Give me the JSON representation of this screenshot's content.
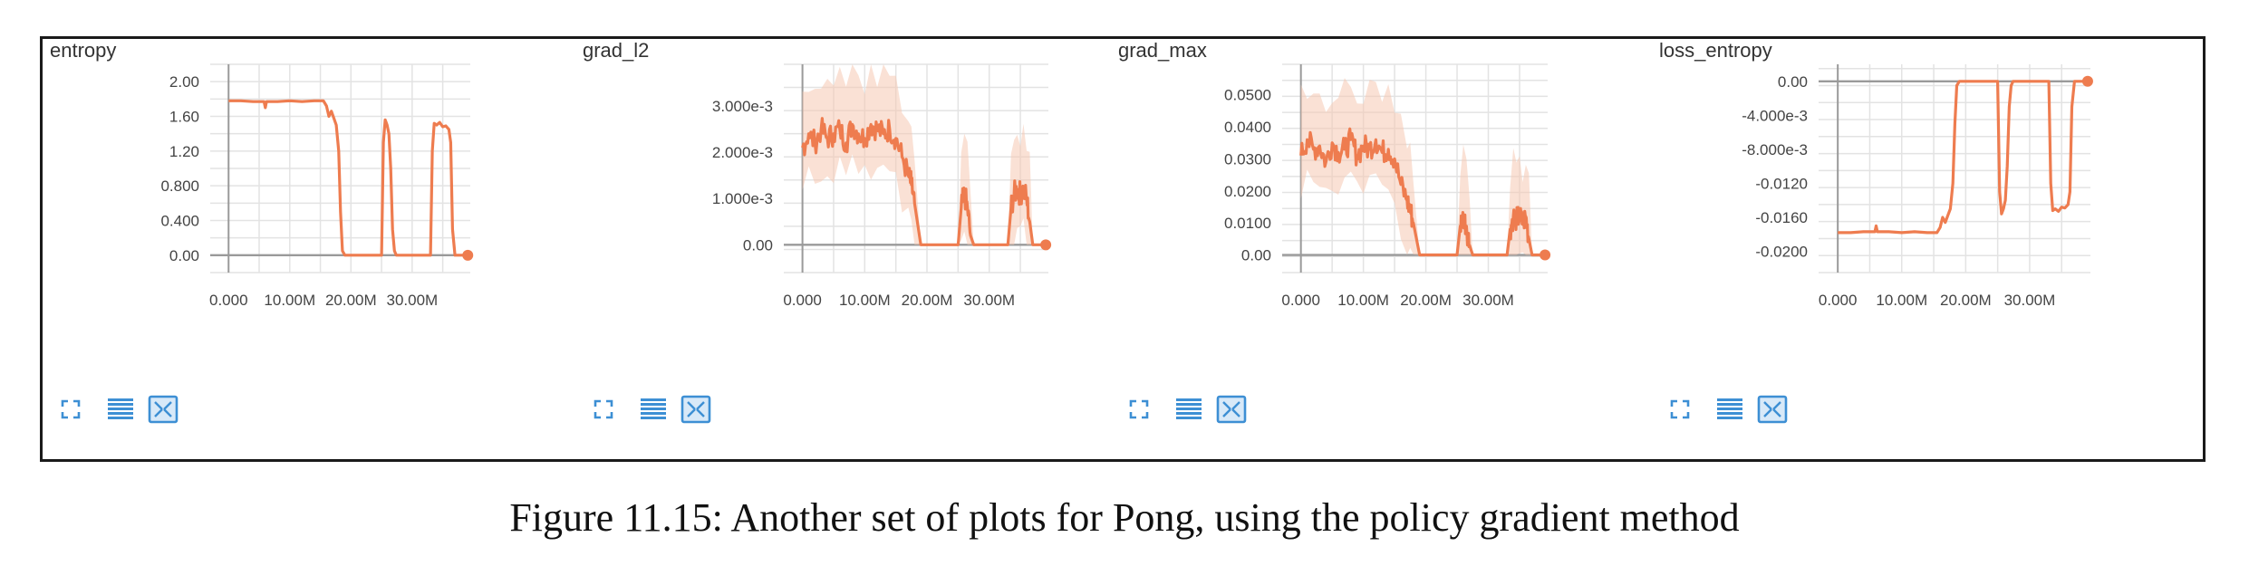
{
  "caption": "Figure 11.15: Another set of plots for Pong, using the policy gradient method",
  "colors": {
    "line": "#ee7c4f",
    "band": "#f6c8b3",
    "grid": "#e3e3e3",
    "axis": "#9a9a9a",
    "text": "#444444",
    "icon": "#3d8fd4"
  },
  "toolbar_icons": [
    "expand-icon",
    "lines-icon",
    "fit-domain-icon"
  ],
  "chart_data": [
    {
      "type": "line",
      "title": "entropy",
      "x_ticks": [
        "0.000",
        "10.00M",
        "20.00M",
        "30.00M"
      ],
      "x_tick_values": [
        0,
        10,
        20,
        30
      ],
      "x_unit": "M steps",
      "xlim": [
        -3,
        39.5
      ],
      "y_ticks": [
        "2.00",
        "1.60",
        "1.20",
        "0.800",
        "0.400",
        "0.00"
      ],
      "y_tick_values": [
        2.0,
        1.6,
        1.2,
        0.8,
        0.4,
        0.0
      ],
      "ylim": [
        -0.2,
        2.2
      ],
      "band": false,
      "series": [
        {
          "x": [
            0,
            2,
            4,
            5.8,
            6,
            6.2,
            8,
            10,
            12,
            14,
            15.5,
            16,
            16.4,
            16.8,
            17.2,
            17.6,
            18,
            18.3,
            18.6,
            19,
            22,
            25,
            25.3,
            25.6,
            25.9,
            26.2,
            26.5,
            26.8,
            27.1,
            27.4,
            28,
            31,
            33,
            33.3,
            33.6,
            34,
            34.5,
            35,
            35.5,
            36,
            36.3,
            36.6,
            37,
            38.5
          ],
          "y": [
            1.78,
            1.78,
            1.77,
            1.77,
            1.7,
            1.77,
            1.77,
            1.78,
            1.77,
            1.78,
            1.78,
            1.72,
            1.6,
            1.66,
            1.58,
            1.5,
            1.2,
            0.5,
            0.05,
            0.0,
            0.0,
            0.0,
            1.3,
            1.56,
            1.5,
            1.4,
            1.0,
            0.3,
            0.05,
            0.0,
            0.0,
            0.0,
            0.0,
            1.2,
            1.52,
            1.5,
            1.53,
            1.48,
            1.49,
            1.45,
            1.3,
            0.3,
            0.0,
            0.0
          ]
        }
      ],
      "end_marker": true
    },
    {
      "type": "line",
      "title": "grad_l2",
      "x_ticks": [
        "0.000",
        "10.00M",
        "20.00M",
        "30.00M"
      ],
      "x_tick_values": [
        0,
        10,
        20,
        30
      ],
      "x_unit": "M steps",
      "xlim": [
        -3,
        39.5
      ],
      "y_ticks": [
        "3.000e-3",
        "2.000e-3",
        "1.000e-3",
        "0.00"
      ],
      "y_tick_values": [
        0.003,
        0.002,
        0.001,
        0.0
      ],
      "ylim": [
        -0.0006,
        0.0039
      ],
      "band": true,
      "series": [
        {
          "x": [
            0,
            1,
            2,
            3,
            4,
            5,
            6,
            7,
            8,
            9,
            10,
            11,
            12,
            13,
            14,
            15,
            16,
            17,
            17.5,
            18,
            19,
            22,
            25,
            25.5,
            26,
            26.5,
            27,
            27.5,
            28,
            31,
            33,
            33.5,
            34,
            34.5,
            35,
            35.5,
            36,
            36.5,
            37,
            38.5
          ],
          "y": [
            0.0021,
            0.0024,
            0.0022,
            0.0025,
            0.0023,
            0.0024,
            0.0025,
            0.0022,
            0.0026,
            0.0024,
            0.0023,
            0.0026,
            0.0025,
            0.0024,
            0.0025,
            0.0023,
            0.0019,
            0.0015,
            0.0013,
            0.0009,
            0.0,
            0.0,
            0.0,
            0.0008,
            0.0011,
            0.0008,
            0.0002,
            0.0,
            0.0,
            0.0,
            0.0,
            0.0008,
            0.0011,
            0.0012,
            0.0011,
            0.0012,
            0.001,
            0.0005,
            0.0,
            0.0
          ]
        }
      ],
      "end_marker": true
    },
    {
      "type": "line",
      "title": "grad_max",
      "x_ticks": [
        "0.000",
        "10.00M",
        "20.00M",
        "30.00M"
      ],
      "x_tick_values": [
        0,
        10,
        20,
        30
      ],
      "x_unit": "M steps",
      "xlim": [
        -3,
        39.5
      ],
      "y_ticks": [
        "0.0500",
        "0.0400",
        "0.0300",
        "0.0200",
        "0.0100",
        "0.00"
      ],
      "y_tick_values": [
        0.05,
        0.04,
        0.03,
        0.02,
        0.01,
        0.0
      ],
      "ylim": [
        -0.0055,
        0.0595
      ],
      "band": true,
      "series": [
        {
          "x": [
            0,
            1,
            2,
            3,
            4,
            5,
            6,
            7,
            8,
            9,
            10,
            11,
            12,
            13,
            14,
            15,
            16,
            17,
            17.5,
            18,
            19,
            22,
            25,
            25.5,
            26,
            26.5,
            27,
            27.5,
            28,
            31,
            33,
            33.5,
            34,
            34.5,
            35,
            35.5,
            36,
            36.5,
            37,
            38.5
          ],
          "y": [
            0.031,
            0.036,
            0.033,
            0.034,
            0.029,
            0.035,
            0.032,
            0.033,
            0.036,
            0.031,
            0.034,
            0.033,
            0.036,
            0.032,
            0.033,
            0.03,
            0.022,
            0.017,
            0.014,
            0.01,
            0.0,
            0.0,
            0.0,
            0.009,
            0.012,
            0.009,
            0.003,
            0.0,
            0.0,
            0.0,
            0.0,
            0.008,
            0.012,
            0.011,
            0.012,
            0.01,
            0.012,
            0.005,
            0.0,
            0.0
          ]
        }
      ],
      "end_marker": true
    },
    {
      "type": "line",
      "title": "loss_entropy",
      "x_ticks": [
        "0.000",
        "10.00M",
        "20.00M",
        "30.00M"
      ],
      "x_tick_values": [
        0,
        10,
        20,
        30
      ],
      "x_unit": "M steps",
      "xlim": [
        -3,
        39.5
      ],
      "y_ticks": [
        "0.00",
        "-4.000e-3",
        "-8.000e-3",
        "-0.0120",
        "-0.0160",
        "-0.0200"
      ],
      "y_tick_values": [
        0.0,
        -0.004,
        -0.008,
        -0.012,
        -0.016,
        -0.02
      ],
      "ylim": [
        -0.0225,
        0.002
      ],
      "band": false,
      "series": [
        {
          "x": [
            0,
            2,
            4,
            5.8,
            6,
            6.2,
            8,
            10,
            12,
            14,
            15.5,
            16,
            16.4,
            16.8,
            17.2,
            17.6,
            18,
            18.3,
            18.6,
            19,
            22,
            25,
            25.3,
            25.6,
            25.9,
            26.2,
            26.5,
            26.8,
            27.1,
            27.4,
            28,
            31,
            33,
            33.3,
            33.6,
            34,
            34.5,
            35,
            35.5,
            36,
            36.3,
            36.6,
            37,
            38.5
          ],
          "y": [
            -0.0178,
            -0.0178,
            -0.0177,
            -0.0177,
            -0.017,
            -0.0177,
            -0.0177,
            -0.0178,
            -0.0177,
            -0.0178,
            -0.0178,
            -0.0172,
            -0.016,
            -0.0166,
            -0.0158,
            -0.015,
            -0.012,
            -0.005,
            -0.0005,
            0.0,
            0.0,
            0.0,
            -0.013,
            -0.0156,
            -0.015,
            -0.014,
            -0.01,
            -0.003,
            -0.0005,
            0.0,
            0.0,
            0.0,
            0.0,
            -0.012,
            -0.0152,
            -0.015,
            -0.0153,
            -0.0148,
            -0.0149,
            -0.0145,
            -0.013,
            -0.003,
            0.0,
            0.0
          ]
        }
      ],
      "end_marker": true
    }
  ]
}
